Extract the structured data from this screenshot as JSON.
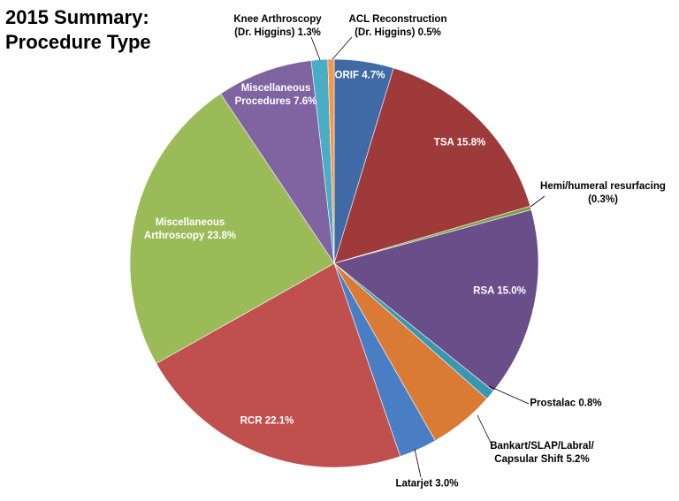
{
  "chart_data": {
    "type": "pie",
    "title": "2015 Summary: Procedure Type",
    "categories": [
      "ORIF",
      "TSA",
      "Hemi/humeral resurfacing",
      "RSA",
      "Prostalac",
      "Bankart/SLAP/Labral/ Capsular Shift",
      "Latarjet",
      "RCR",
      "Miscellaneous Arthroscopy",
      "Miscellaneous Procedures",
      "Knee Arthroscopy (Dr. Higgins)",
      "ACL Reconstruction (Dr. Higgins)"
    ],
    "values": [
      4.7,
      15.8,
      0.3,
      15.0,
      0.8,
      5.2,
      3.0,
      22.1,
      23.8,
      7.6,
      1.3,
      0.5
    ],
    "value_labels": [
      "4.7%",
      "15.8%",
      "(0.3%)",
      "15.0%",
      "0.8%",
      "5.2%",
      "3.0%",
      "22.1%",
      "23.8%",
      "7.6%",
      "1.3%",
      "0.5%"
    ],
    "colors": [
      "#3f6aa5",
      "#9e3b3a",
      "#7f9f4a",
      "#6a4e8a",
      "#3a97b0",
      "#d97b35",
      "#4a7ec4",
      "#c0504d",
      "#9bbb59",
      "#8064a2",
      "#4bacc6",
      "#f79646"
    ]
  }
}
